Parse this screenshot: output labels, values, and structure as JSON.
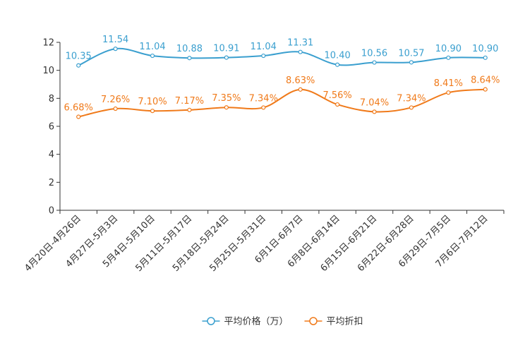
{
  "chart_data": {
    "type": "line",
    "title": "",
    "xlabel": "",
    "ylabel": "",
    "ylim": [
      0,
      12
    ],
    "yticks": [
      0,
      2,
      4,
      6,
      8,
      10,
      12
    ],
    "grid": false,
    "legend_position": "bottom-center",
    "categories": [
      "4月20日-4月26日",
      "4月27日-5月3日",
      "5月4日-5月10日",
      "5月11日-5月17日",
      "5月18日-5月24日",
      "5月25日-5月31日",
      "6月1日-6月7日",
      "6月8日-6月14日",
      "6月15日-6月21日",
      "6月22日-6月28日",
      "6月29日-7月5日",
      "7月6日-7月12日"
    ],
    "series": [
      {
        "name": "平均价格（万）",
        "color": "#3a9fcf",
        "values": [
          10.35,
          11.54,
          11.04,
          10.88,
          10.91,
          11.04,
          11.31,
          10.4,
          10.56,
          10.57,
          10.9,
          10.9
        ],
        "labels": [
          "10.35",
          "11.54",
          "11.04",
          "10.88",
          "10.91",
          "11.04",
          "11.31",
          "10.40",
          "10.56",
          "10.57",
          "10.90",
          "10.90"
        ]
      },
      {
        "name": "平均折扣",
        "color": "#f07a1a",
        "values": [
          6.68,
          7.26,
          7.1,
          7.17,
          7.35,
          7.34,
          8.63,
          7.56,
          7.04,
          7.34,
          8.41,
          8.64
        ],
        "labels": [
          "6.68%",
          "7.26%",
          "7.10%",
          "7.17%",
          "7.35%",
          "7.34%",
          "8.63%",
          "7.56%",
          "7.04%",
          "7.34%",
          "8.41%",
          "8.64%"
        ]
      }
    ]
  }
}
